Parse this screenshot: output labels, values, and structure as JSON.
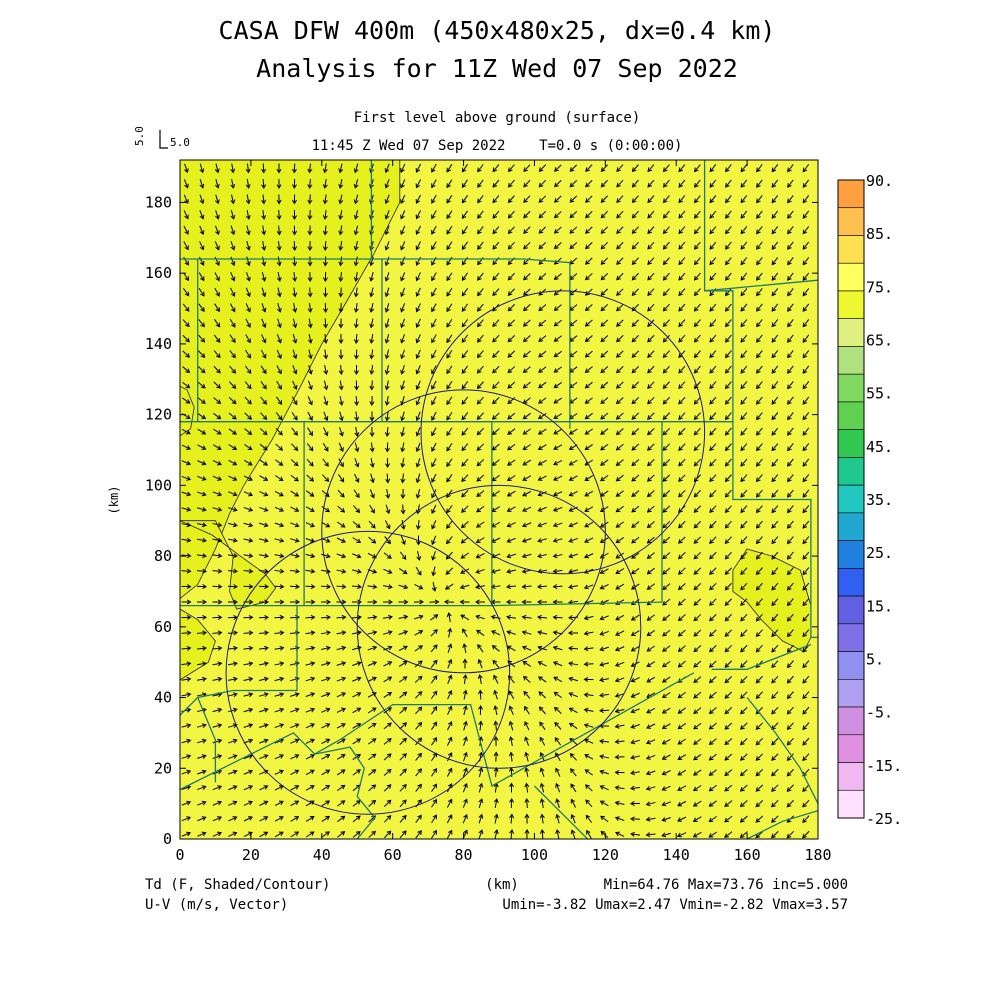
{
  "header": {
    "title_line1": "CASA DFW 400m (450x480x25, dx=0.4 km)",
    "title_line2": "Analysis for 11Z Wed 07 Sep 2022",
    "level_label": "First level above ground (surface)",
    "time_label": "11:45 Z Wed 07 Sep 2022    T=0.0 s (0:00:00)"
  },
  "vector_key": {
    "rotated": "5.0",
    "label": "5.0"
  },
  "footer": {
    "left_line1": "Td (F, Shaded/Contour)",
    "left_line2": "U-V (m/s, Vector)",
    "unit_label": "(km)",
    "stats_line1": "Min=64.76 Max=73.76 inc=5.000",
    "stats_line2": "Umin=-3.82 Umax=2.47 Vmin=-2.82 Vmax=3.57"
  },
  "colors": {
    "field_base": "#f2f542",
    "field_warm": "#f5f74a",
    "field_cool": "#e6f01e",
    "county_lines": "#1f7a6e",
    "range_rings": "#1a1a80"
  },
  "chart_data": {
    "type": "heatmap",
    "title": "First level above ground (surface)",
    "variable": "Td (F, Shaded/Contour)",
    "vector_variable": "U-V (m/s, Vector)",
    "xlabel": "",
    "ylabel": "(km)",
    "xlim": [
      0,
      180
    ],
    "ylim": [
      0,
      192
    ],
    "x_ticks": [
      0,
      20,
      40,
      60,
      80,
      100,
      120,
      140,
      160,
      180
    ],
    "y_ticks": [
      0,
      20,
      40,
      60,
      80,
      100,
      120,
      140,
      160,
      180
    ],
    "contour_interval": 5.0,
    "min": 64.76,
    "max": 73.76,
    "u_min": -3.82,
    "u_max": 2.47,
    "v_min": -2.82,
    "v_max": 3.57,
    "colorbar": {
      "labels": [
        "90.",
        "85.",
        "75.",
        "65.",
        "55.",
        "45.",
        "35.",
        "25.",
        "15.",
        "5.",
        "-5.",
        "-15.",
        "-25."
      ],
      "colors": [
        "#ffa040",
        "#ffc050",
        "#ffe050",
        "#ffff60",
        "#eef830",
        "#e0f080",
        "#b0e080",
        "#80d860",
        "#60d050",
        "#30c850",
        "#20c890",
        "#20c8c0",
        "#20a8d0",
        "#2080e0",
        "#3060f0",
        "#6060e0",
        "#8070e8",
        "#9090f0",
        "#b0a0f0",
        "#d090e0",
        "#e090e0",
        "#f0b8f0",
        "#ffe0ff"
      ]
    },
    "range_rings": [
      {
        "cx": 108,
        "cy": 115,
        "r": 40
      },
      {
        "cx": 80,
        "cy": 87,
        "r": 40
      },
      {
        "cx": 90,
        "cy": 60,
        "r": 40
      },
      {
        "cx": 53,
        "cy": 47,
        "r": 40
      }
    ],
    "contours_65": [
      [
        [
          0,
          192
        ],
        [
          62,
          192
        ],
        [
          62,
          180
        ],
        [
          55,
          166
        ],
        [
          47,
          152
        ],
        [
          40,
          140
        ],
        [
          34,
          128
        ],
        [
          26,
          113
        ],
        [
          18,
          100
        ],
        [
          14,
          92
        ],
        [
          10,
          82
        ],
        [
          5,
          72
        ],
        [
          0,
          68
        ]
      ],
      [
        [
          0,
          114
        ],
        [
          3,
          116
        ],
        [
          4,
          122
        ],
        [
          2,
          127
        ],
        [
          0,
          128
        ]
      ],
      [
        [
          0,
          90
        ],
        [
          9,
          86
        ],
        [
          17,
          80
        ],
        [
          24,
          75
        ],
        [
          27,
          71
        ],
        [
          24,
          67
        ],
        [
          16,
          65
        ],
        [
          14,
          70
        ],
        [
          15,
          80
        ],
        [
          10,
          90
        ],
        [
          0,
          90
        ]
      ],
      [
        [
          0,
          45
        ],
        [
          8,
          50
        ],
        [
          10,
          56
        ],
        [
          5,
          62
        ],
        [
          0,
          65
        ]
      ],
      [
        [
          156,
          76
        ],
        [
          160,
          82
        ],
        [
          167,
          80
        ],
        [
          175,
          76
        ],
        [
          178,
          66
        ],
        [
          178,
          57
        ],
        [
          176,
          53
        ],
        [
          170,
          56
        ],
        [
          164,
          62
        ],
        [
          160,
          67
        ],
        [
          156,
          70
        ],
        [
          156,
          76
        ]
      ]
    ],
    "county_lines": [
      [
        [
          0,
          164
        ],
        [
          54,
          164
        ],
        [
          54,
          192
        ]
      ],
      [
        [
          5,
          164
        ],
        [
          5,
          118
        ]
      ],
      [
        [
          54,
          164
        ],
        [
          57,
          164
        ],
        [
          57,
          118
        ]
      ],
      [
        [
          57,
          164
        ],
        [
          97,
          164
        ],
        [
          110,
          163
        ],
        [
          110,
          116
        ]
      ],
      [
        [
          0,
          118
        ],
        [
          156,
          118
        ],
        [
          156,
          96
        ],
        [
          178,
          96
        ],
        [
          178,
          57
        ],
        [
          180,
          57
        ]
      ],
      [
        [
          148,
          192
        ],
        [
          148,
          155
        ],
        [
          156,
          155
        ],
        [
          156,
          118
        ]
      ],
      [
        [
          148,
          155
        ],
        [
          180,
          158
        ]
      ],
      [
        [
          35,
          118
        ],
        [
          35,
          66
        ],
        [
          0,
          66
        ]
      ],
      [
        [
          35,
          66
        ],
        [
          88,
          66
        ],
        [
          88,
          118
        ]
      ],
      [
        [
          88,
          66
        ],
        [
          136,
          67
        ],
        [
          136,
          118
        ]
      ],
      [
        [
          0,
          35
        ],
        [
          5,
          40
        ],
        [
          15,
          42
        ],
        [
          33,
          42
        ],
        [
          33,
          66
        ]
      ],
      [
        [
          0,
          14
        ],
        [
          32,
          30
        ],
        [
          38,
          24
        ],
        [
          45,
          28
        ],
        [
          60,
          38
        ],
        [
          82,
          38
        ],
        [
          88,
          15
        ],
        [
          145,
          47
        ]
      ],
      [
        [
          150,
          48
        ],
        [
          160,
          48
        ],
        [
          178,
          55
        ]
      ],
      [
        [
          160,
          40
        ],
        [
          168,
          30
        ],
        [
          175,
          20
        ],
        [
          180,
          10
        ]
      ],
      [
        [
          5,
          40
        ],
        [
          10,
          28
        ],
        [
          10,
          16
        ]
      ],
      [
        [
          38,
          24
        ],
        [
          48,
          26
        ],
        [
          52,
          20
        ],
        [
          50,
          12
        ],
        [
          55,
          6
        ],
        [
          50,
          0
        ]
      ],
      [
        [
          100,
          15
        ],
        [
          110,
          5
        ],
        [
          115,
          0
        ]
      ],
      [
        [
          160,
          0
        ],
        [
          170,
          5
        ],
        [
          180,
          8
        ]
      ]
    ]
  }
}
